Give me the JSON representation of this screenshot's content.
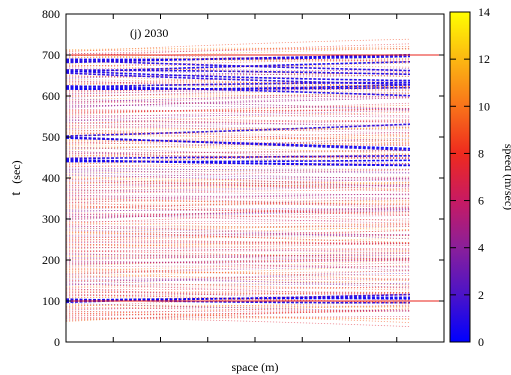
{
  "chart_data": {
    "type": "heatmap",
    "annotation": "(j) 2030",
    "xlabel": "space (m)",
    "ylabel_main": "t",
    "ylabel_unit": "(sec)",
    "ylim": [
      0,
      800
    ],
    "y_ticks": [
      "0",
      "100",
      "200",
      "300",
      "400",
      "500",
      "600",
      "700",
      "800"
    ],
    "x_tick_labels": [],
    "reference_lines_y": [
      100,
      700
    ],
    "reference_line_color": "#e8211a",
    "colorbar": {
      "label": "speed (m/sec)",
      "range": [
        0,
        14
      ],
      "ticks": [
        "0",
        "2",
        "4",
        "6",
        "8",
        "10",
        "12",
        "14"
      ],
      "colors": [
        "#0000ff",
        "#4b13c8",
        "#8a1f9a",
        "#c81a62",
        "#ee2a1e",
        "#f9731a",
        "#fcb812",
        "#ffff00"
      ]
    },
    "trajectory_time_range": [
      50,
      715
    ],
    "dense_jam_bands_t": [
      100,
      445,
      500,
      620,
      660,
      685
    ]
  }
}
